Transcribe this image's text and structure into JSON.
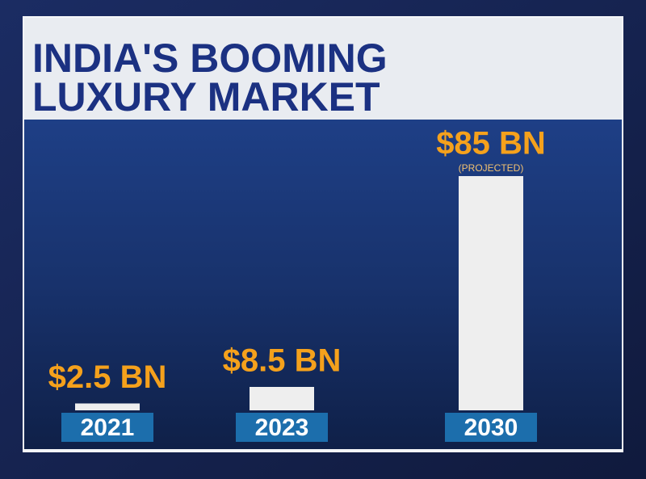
{
  "chart_data": {
    "type": "bar",
    "title": "INDIA'S BOOMING LUXURY MARKET",
    "categories": [
      "2021",
      "2023",
      "2030"
    ],
    "values": [
      2.5,
      8.5,
      85
    ],
    "value_labels": [
      "$2.5 BN",
      "$8.5 BN",
      "$85 BN"
    ],
    "annotation": "(PROJECTED)",
    "color": "#eeeeee"
  }
}
